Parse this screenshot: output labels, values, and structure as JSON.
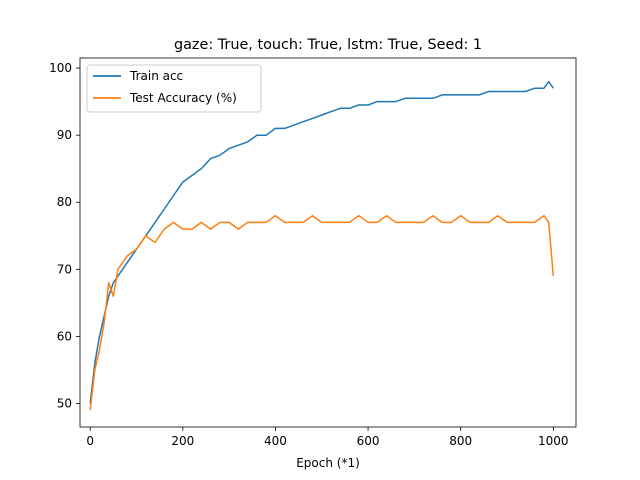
{
  "chart_data": {
    "type": "line",
    "title": "gaze: True, touch: True, lstm: True, Seed: 1",
    "xlabel": "Epoch (*1)",
    "ylabel": "",
    "xlim": [
      -22,
      1049
    ],
    "ylim": [
      46.5,
      101.5
    ],
    "xticks": [
      0,
      200,
      400,
      600,
      800,
      1000
    ],
    "yticks": [
      50,
      60,
      70,
      80,
      90,
      100
    ],
    "grid": false,
    "legend_position": "top-left",
    "series": [
      {
        "name": "Train acc",
        "color": "#1f77b4",
        "x": [
          0,
          10,
          20,
          30,
          40,
          50,
          60,
          70,
          80,
          100,
          120,
          140,
          160,
          180,
          200,
          220,
          240,
          260,
          280,
          300,
          320,
          340,
          360,
          380,
          400,
          420,
          440,
          460,
          480,
          500,
          520,
          540,
          560,
          580,
          600,
          620,
          640,
          660,
          680,
          700,
          720,
          740,
          760,
          780,
          800,
          820,
          840,
          860,
          880,
          900,
          920,
          940,
          960,
          980,
          990,
          1000
        ],
        "values": [
          50,
          56,
          60,
          63,
          66,
          68,
          69,
          70,
          71,
          73,
          75,
          77,
          79,
          81,
          83,
          84,
          85,
          86.5,
          87,
          88,
          88.5,
          89,
          90,
          90,
          91,
          91,
          91.5,
          92,
          92.5,
          93,
          93.5,
          94,
          94,
          94.5,
          94.5,
          95,
          95,
          95,
          95.5,
          95.5,
          95.5,
          95.5,
          96,
          96,
          96,
          96,
          96,
          96.5,
          96.5,
          96.5,
          96.5,
          96.5,
          97,
          97,
          98,
          97
        ]
      },
      {
        "name": "Test Accuracy (%)",
        "color": "#ff7f0e",
        "x": [
          0,
          10,
          20,
          30,
          40,
          50,
          60,
          70,
          80,
          100,
          120,
          140,
          160,
          180,
          200,
          220,
          240,
          260,
          280,
          300,
          320,
          340,
          360,
          380,
          400,
          420,
          440,
          460,
          480,
          500,
          520,
          540,
          560,
          580,
          600,
          620,
          640,
          660,
          680,
          700,
          720,
          740,
          760,
          780,
          800,
          820,
          840,
          860,
          880,
          900,
          920,
          940,
          960,
          980,
          990,
          1000
        ],
        "values": [
          49,
          55,
          58,
          62,
          68,
          66,
          70,
          71,
          72,
          73,
          75,
          74,
          76,
          77,
          76,
          76,
          77,
          76,
          77,
          77,
          76,
          77,
          77,
          77,
          78,
          77,
          77,
          77,
          78,
          77,
          77,
          77,
          77,
          78,
          77,
          77,
          78,
          77,
          77,
          77,
          77,
          78,
          77,
          77,
          78,
          77,
          77,
          77,
          78,
          77,
          77,
          77,
          77,
          78,
          77,
          69
        ]
      }
    ]
  }
}
